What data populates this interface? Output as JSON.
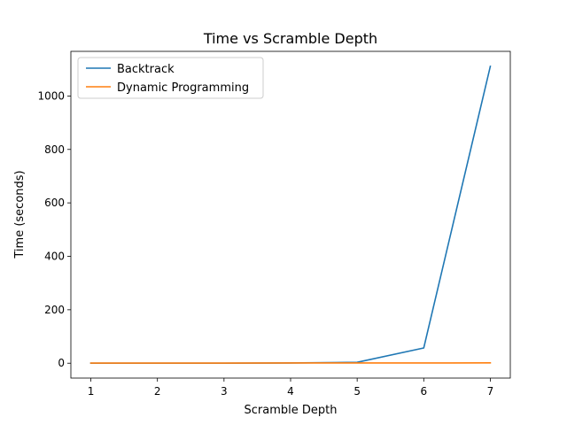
{
  "chart_data": {
    "type": "line",
    "title": "Time vs Scramble Depth",
    "xlabel": "Scramble Depth",
    "ylabel": "Time (seconds)",
    "x": [
      1,
      2,
      3,
      4,
      5,
      6,
      7
    ],
    "xticks": [
      1,
      2,
      3,
      4,
      5,
      6,
      7
    ],
    "yticks": [
      0,
      200,
      400,
      600,
      800,
      1000
    ],
    "xlim": [
      0.7,
      7.3
    ],
    "ylim": [
      -55.6,
      1167
    ],
    "grid": false,
    "legend_position": "top-left",
    "series": [
      {
        "name": "Backtrack",
        "color": "#1f77b4",
        "values": [
          0.01,
          0.03,
          0.1,
          0.8,
          3.5,
          57,
          1111
        ]
      },
      {
        "name": "Dynamic Programming",
        "color": "#ff7f0e",
        "values": [
          0.5,
          0.5,
          0.6,
          0.8,
          0.9,
          1.0,
          1.2
        ]
      }
    ]
  }
}
